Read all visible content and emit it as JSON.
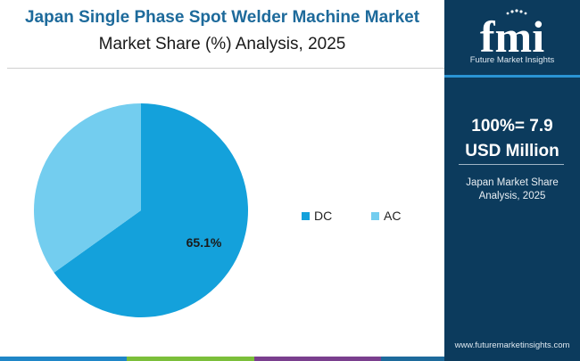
{
  "header": {
    "title": "Japan Single Phase Spot Welder Machine Market",
    "subtitle": "Market Share (%) Analysis, 2025"
  },
  "chart_data": {
    "type": "pie",
    "slices": [
      {
        "label": "DC",
        "value": 65.1,
        "color": "#14a1db",
        "data_label": "65.1%"
      },
      {
        "label": "AC",
        "value": 34.9,
        "color": "#73cdef"
      }
    ],
    "legend": [
      "DC",
      "AC"
    ],
    "legend_position": "right"
  },
  "sidebar": {
    "logo_text": "fmi",
    "logo_subtext": "Future Market Insights",
    "total_line1": "100%= 7.9",
    "total_line2": "USD Million",
    "caption_line1": "Japan Market Share",
    "caption_line2": "Analysis, 2025",
    "url": "www.futuremarketinsights.com",
    "background_color": "#0c3b5d"
  },
  "footer": {
    "stripe_colors": [
      "#1f86c7",
      "#1f86c7",
      "#7bbf3a",
      "#7bbf3a",
      "#7a3f8e",
      "#7a3f8e",
      "#1d6a9b"
    ]
  }
}
